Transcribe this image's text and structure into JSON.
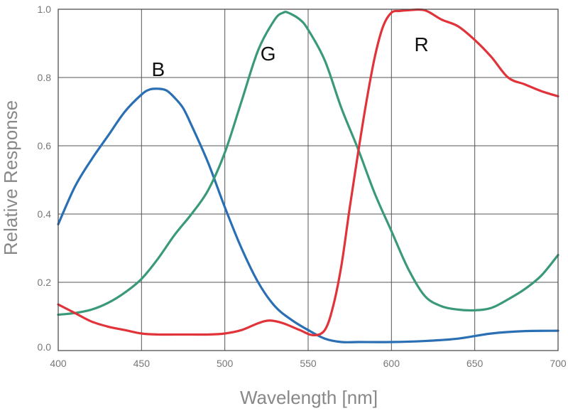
{
  "chart_data": {
    "type": "line",
    "title": "",
    "xlabel": "Wavelength [nm]",
    "ylabel": "Relative Response",
    "xlim": [
      400,
      700
    ],
    "ylim": [
      0.0,
      1.0
    ],
    "x_ticks": [
      "400",
      "450",
      "500",
      "550",
      "600",
      "650",
      "700"
    ],
    "y_ticks": [
      "0.0",
      "0.2",
      "0.4",
      "0.6",
      "0.8",
      "1.0"
    ],
    "grid": true,
    "legend": "inline labels",
    "series": [
      {
        "name": "B",
        "color": "#2a6fb3",
        "x": [
          400,
          410,
          420,
          430,
          440,
          450,
          455,
          460,
          465,
          470,
          475,
          480,
          490,
          500,
          510,
          520,
          530,
          540,
          550,
          560,
          570,
          580,
          600,
          620,
          640,
          660,
          680,
          700
        ],
        "y": [
          0.37,
          0.48,
          0.56,
          0.63,
          0.7,
          0.75,
          0.765,
          0.767,
          0.762,
          0.74,
          0.71,
          0.66,
          0.55,
          0.42,
          0.3,
          0.2,
          0.13,
          0.09,
          0.06,
          0.035,
          0.025,
          0.025,
          0.025,
          0.028,
          0.035,
          0.05,
          0.057,
          0.058
        ]
      },
      {
        "name": "G",
        "color": "#3a9a78",
        "x": [
          400,
          410,
          420,
          430,
          440,
          450,
          460,
          470,
          480,
          490,
          500,
          510,
          520,
          530,
          535,
          538,
          545,
          550,
          560,
          570,
          580,
          590,
          600,
          610,
          620,
          630,
          640,
          650,
          660,
          670,
          680,
          690,
          700
        ],
        "y": [
          0.105,
          0.11,
          0.12,
          0.14,
          0.17,
          0.21,
          0.27,
          0.34,
          0.4,
          0.47,
          0.58,
          0.73,
          0.88,
          0.97,
          0.99,
          0.99,
          0.97,
          0.94,
          0.85,
          0.71,
          0.59,
          0.46,
          0.35,
          0.24,
          0.16,
          0.13,
          0.12,
          0.118,
          0.125,
          0.15,
          0.18,
          0.22,
          0.28
        ]
      },
      {
        "name": "R",
        "color": "#e0333a",
        "x": [
          400,
          410,
          420,
          430,
          440,
          450,
          460,
          470,
          480,
          490,
          500,
          510,
          520,
          527,
          535,
          545,
          553,
          560,
          565,
          570,
          575,
          580,
          585,
          590,
          595,
          600,
          605,
          610,
          620,
          630,
          640,
          650,
          660,
          670,
          680,
          690,
          700
        ],
        "y": [
          0.135,
          0.11,
          0.085,
          0.07,
          0.06,
          0.05,
          0.047,
          0.047,
          0.047,
          0.047,
          0.05,
          0.06,
          0.08,
          0.088,
          0.08,
          0.06,
          0.045,
          0.06,
          0.13,
          0.25,
          0.42,
          0.58,
          0.73,
          0.86,
          0.95,
          0.99,
          0.995,
          0.997,
          0.997,
          0.97,
          0.95,
          0.91,
          0.86,
          0.8,
          0.78,
          0.76,
          0.745
        ]
      }
    ]
  }
}
